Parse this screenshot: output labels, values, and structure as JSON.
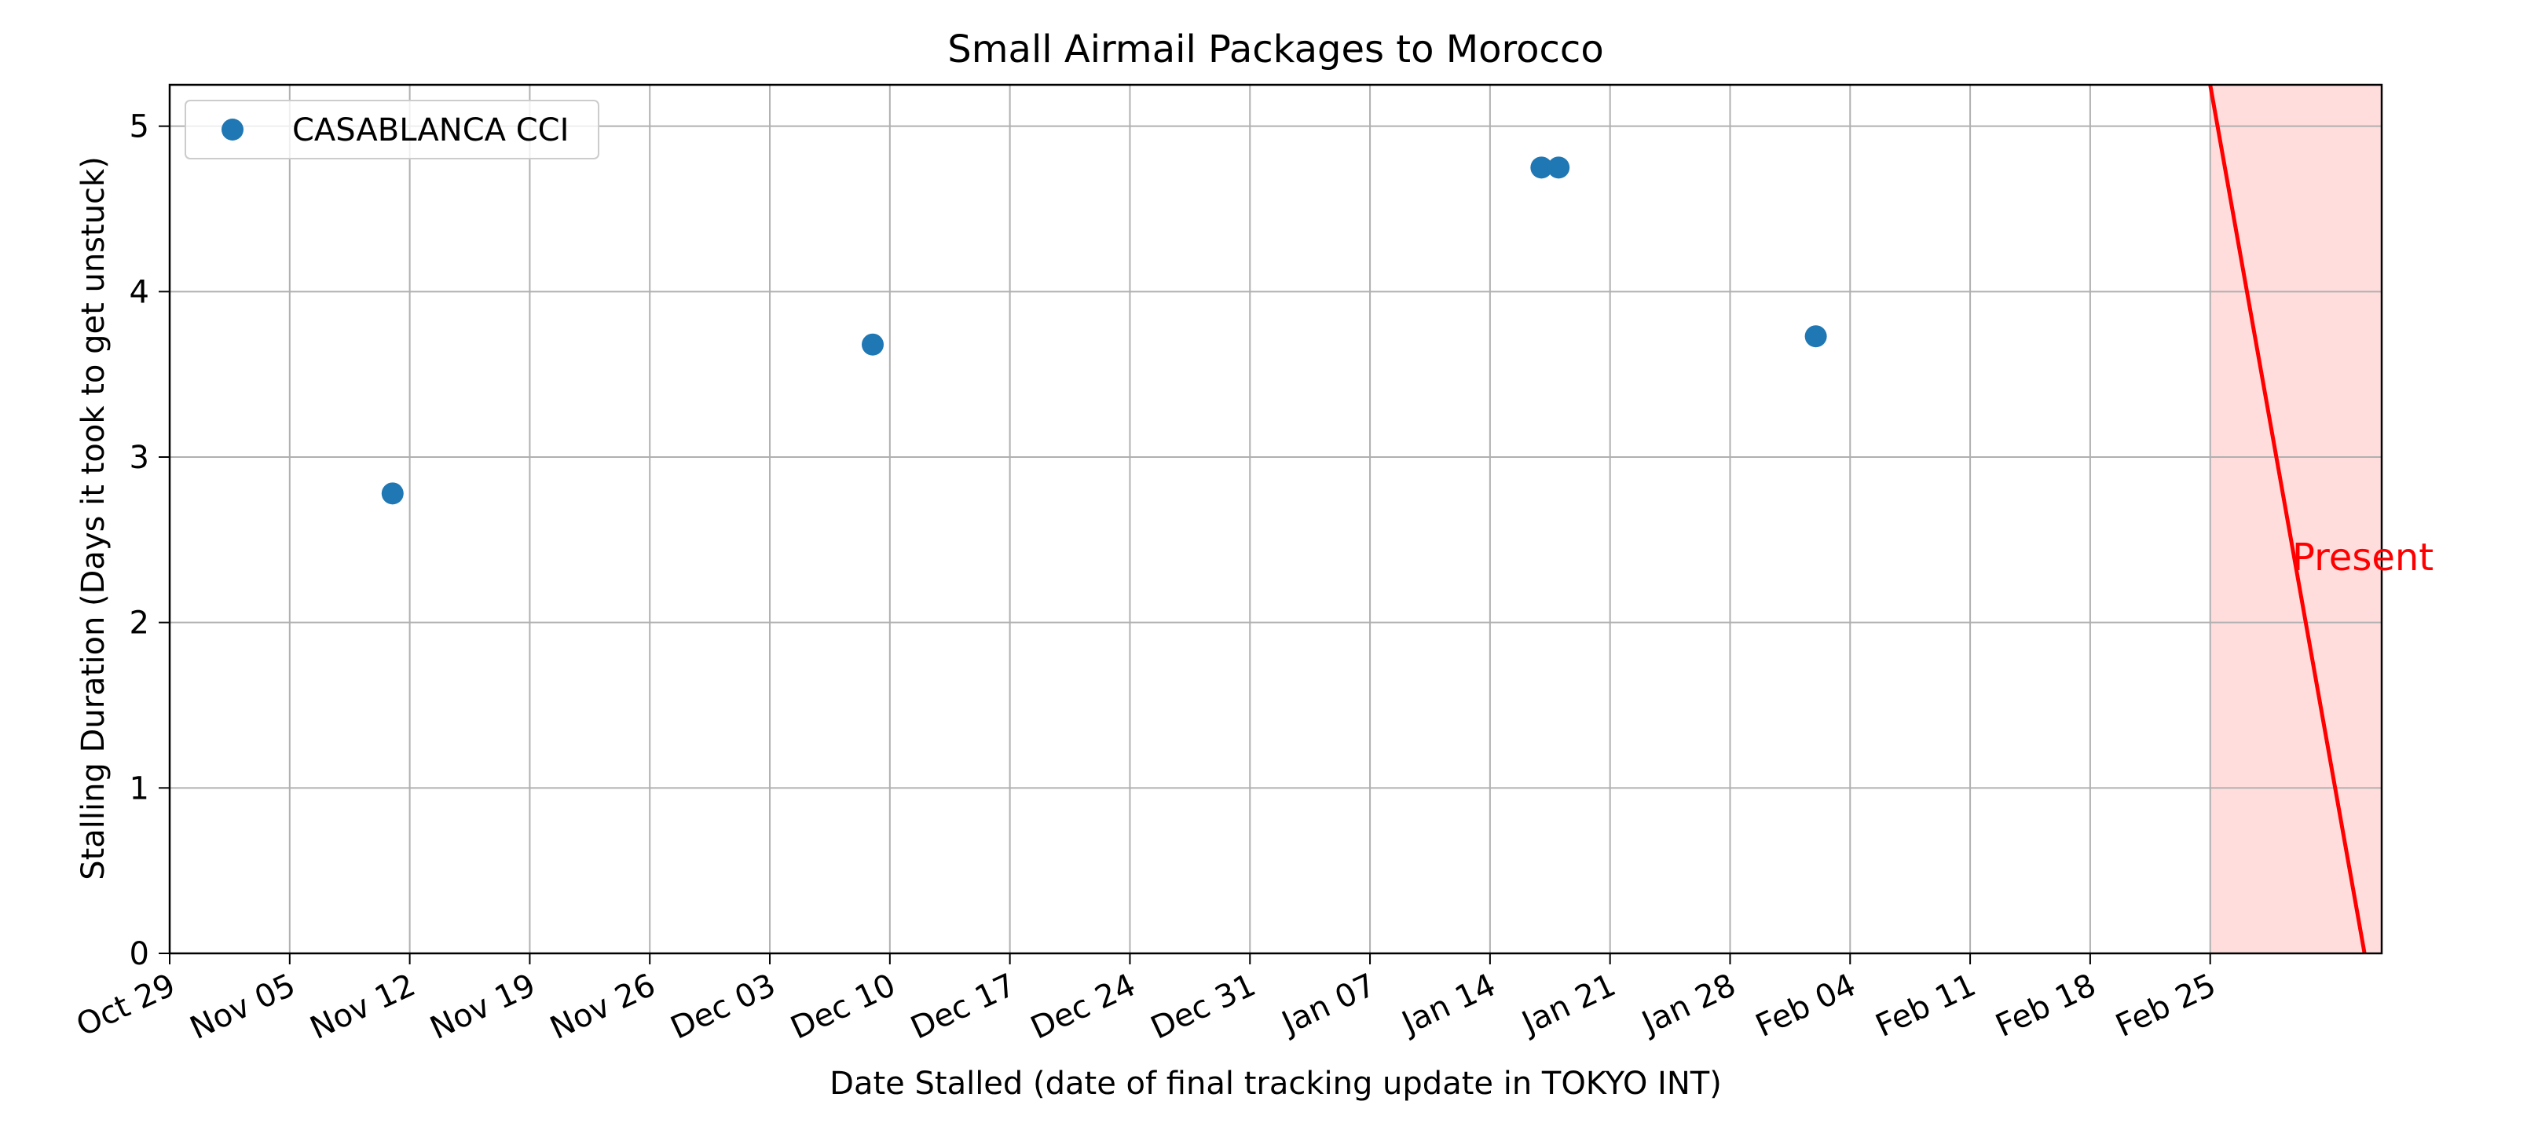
{
  "chart_data": {
    "type": "scatter",
    "title": "Small Airmail Packages to Morocco",
    "xlabel": "Date Stalled (date of final tracking update in TOKYO INT)",
    "ylabel": "Stalling Duration (Days it took to get unstuck)",
    "x_type": "date",
    "xlim": [
      "2023-10-29",
      "2024-03-06"
    ],
    "ylim": [
      0,
      5.25
    ],
    "x_ticks": [
      "2023-10-29",
      "2023-11-05",
      "2023-11-12",
      "2023-11-19",
      "2023-11-26",
      "2023-12-03",
      "2023-12-10",
      "2023-12-17",
      "2023-12-24",
      "2023-12-31",
      "2024-01-07",
      "2024-01-14",
      "2024-01-21",
      "2024-01-28",
      "2024-02-04",
      "2024-02-11",
      "2024-02-18",
      "2024-02-25"
    ],
    "x_tick_labels": [
      "Oct 29",
      "Nov 05",
      "Nov 12",
      "Nov 19",
      "Nov 26",
      "Dec 03",
      "Dec 10",
      "Dec 17",
      "Dec 24",
      "Dec 31",
      "Jan 07",
      "Jan 14",
      "Jan 21",
      "Jan 28",
      "Feb 04",
      "Feb 11",
      "Feb 18",
      "Feb 25"
    ],
    "y_ticks": [
      0,
      1,
      2,
      3,
      4,
      5
    ],
    "y_tick_labels": [
      "0",
      "1",
      "2",
      "3",
      "4",
      "5"
    ],
    "grid": true,
    "legend_position": "top-left",
    "series": [
      {
        "name": "CASABLANCA CCI",
        "color": "#1f77b4",
        "points": [
          {
            "x": "2023-11-11",
            "y": 2.78
          },
          {
            "x": "2023-12-09",
            "y": 3.68
          },
          {
            "x": "2024-01-17",
            "y": 4.75
          },
          {
            "x": "2024-01-18",
            "y": 4.75
          },
          {
            "x": "2024-02-02",
            "y": 3.73
          }
        ]
      }
    ],
    "annotation": {
      "text": "Present",
      "color": "#ff0000",
      "shade_color": "#ffdddd",
      "line_start": {
        "x": "2024-02-25",
        "y": 5.25
      },
      "line_end": {
        "x": "2024-03-05",
        "y": 0
      },
      "shade_range": [
        "2024-02-25",
        "2024-03-06"
      ]
    }
  }
}
